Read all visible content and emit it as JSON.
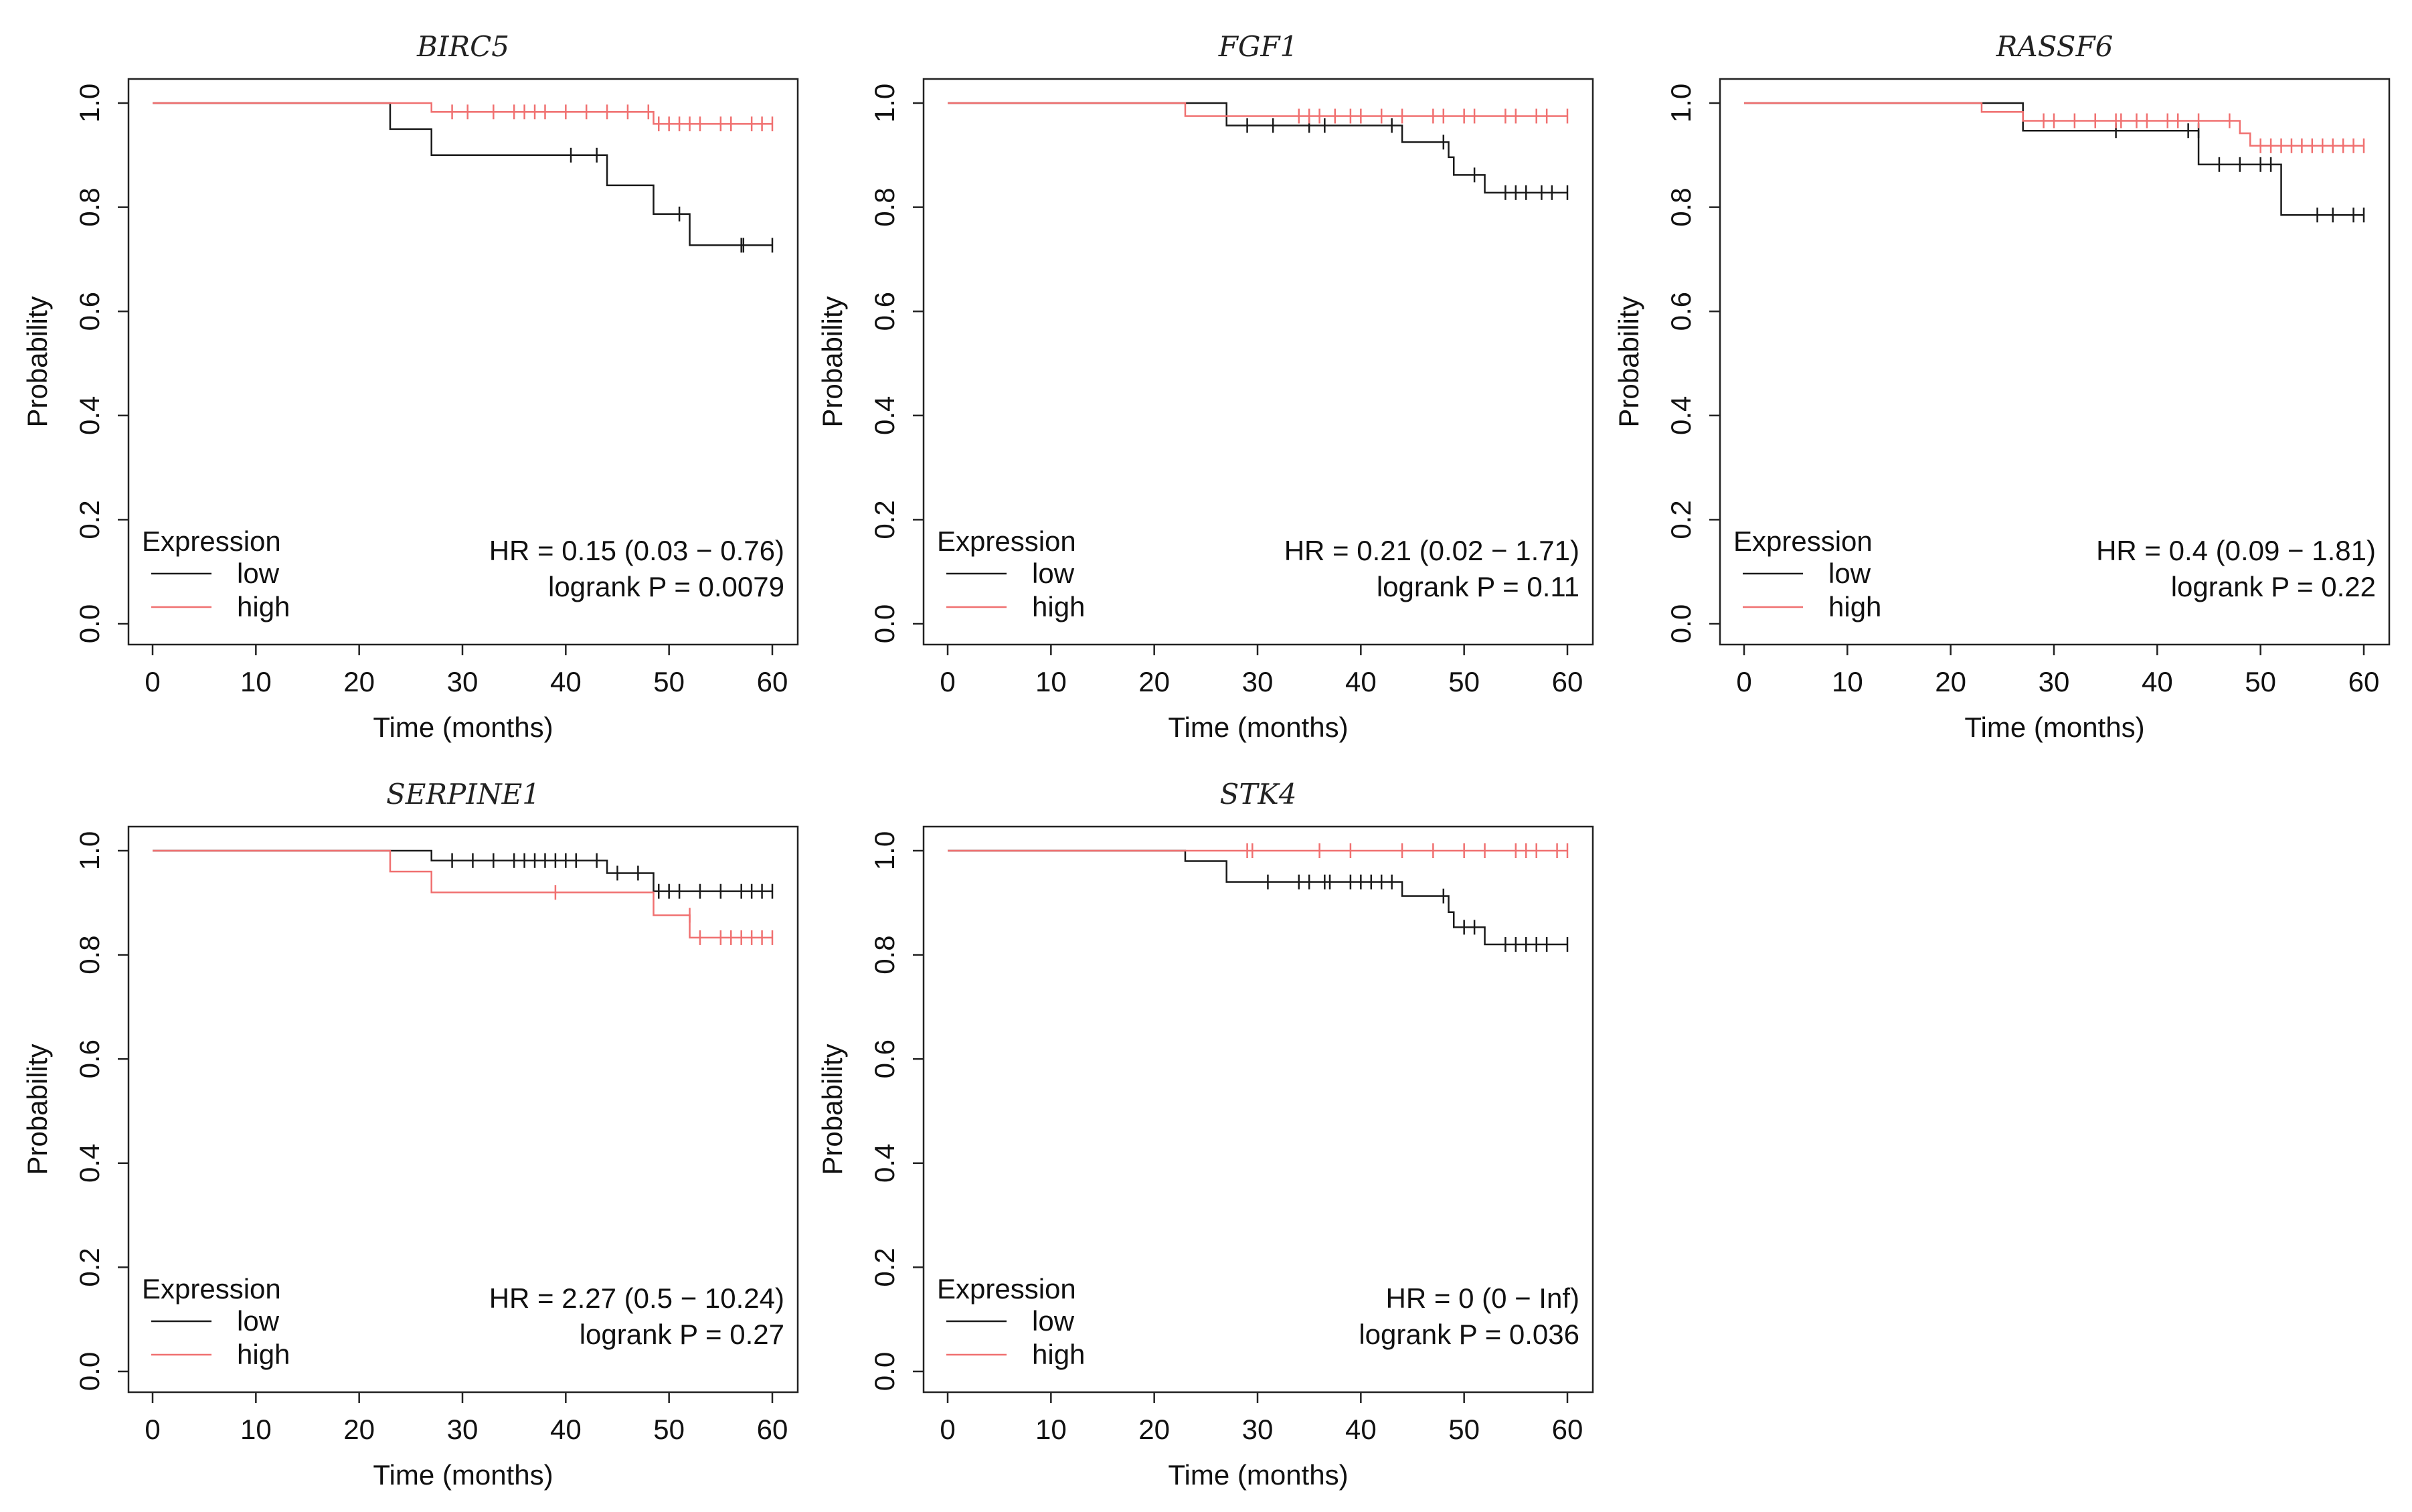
{
  "colors": {
    "low": "#1a1a1a",
    "high": "#f07070",
    "axis": "#222222"
  },
  "chart_data": [
    {
      "type": "line",
      "subtype": "kaplan-meier",
      "title": "BIRC5",
      "xlabel": "Time (months)",
      "ylabel": "Probability",
      "xlim": [
        0,
        60
      ],
      "ylim": [
        0,
        1
      ],
      "xticks": [
        "0",
        "10",
        "20",
        "30",
        "40",
        "50",
        "60"
      ],
      "yticks": [
        "0.0",
        "0.2",
        "0.4",
        "0.6",
        "0.8",
        "1.0"
      ],
      "legend": {
        "title": "Expression",
        "entries": [
          "low",
          "high"
        ],
        "position": "bottom-left"
      },
      "stats": {
        "hr": "HR = 0.15 (0.03 − 0.76)",
        "logrank": "logrank P = 0.0079"
      },
      "series": [
        {
          "name": "low",
          "steps": [
            [
              0,
              1.0
            ],
            [
              23,
              0.95
            ],
            [
              27,
              0.9
            ],
            [
              44,
              0.842
            ],
            [
              48.5,
              0.787
            ],
            [
              52,
              0.727
            ],
            [
              60,
              0.727
            ]
          ],
          "censors": [
            [
              40.5,
              0.9
            ],
            [
              43,
              0.9
            ],
            [
              51,
              0.787
            ],
            [
              57,
              0.727
            ],
            [
              57.2,
              0.727
            ],
            [
              60,
              0.727
            ]
          ]
        },
        {
          "name": "high",
          "steps": [
            [
              0,
              1.0
            ],
            [
              27,
              0.983
            ],
            [
              48.5,
              0.96
            ],
            [
              60,
              0.96
            ]
          ],
          "censors": [
            [
              29,
              0.983
            ],
            [
              30.5,
              0.983
            ],
            [
              33,
              0.983
            ],
            [
              35,
              0.983
            ],
            [
              36,
              0.983
            ],
            [
              37,
              0.983
            ],
            [
              38,
              0.983
            ],
            [
              40,
              0.983
            ],
            [
              42,
              0.983
            ],
            [
              44,
              0.983
            ],
            [
              46,
              0.983
            ],
            [
              48,
              0.983
            ],
            [
              49,
              0.96
            ],
            [
              50,
              0.96
            ],
            [
              51,
              0.96
            ],
            [
              52,
              0.96
            ],
            [
              53,
              0.96
            ],
            [
              55,
              0.96
            ],
            [
              56,
              0.96
            ],
            [
              58,
              0.96
            ],
            [
              59,
              0.96
            ],
            [
              60,
              0.96
            ]
          ]
        }
      ]
    },
    {
      "type": "line",
      "subtype": "kaplan-meier",
      "title": "FGF1",
      "xlabel": "Time (months)",
      "ylabel": "Probability",
      "xlim": [
        0,
        60
      ],
      "ylim": [
        0,
        1
      ],
      "xticks": [
        "0",
        "10",
        "20",
        "30",
        "40",
        "50",
        "60"
      ],
      "yticks": [
        "0.0",
        "0.2",
        "0.4",
        "0.6",
        "0.8",
        "1.0"
      ],
      "legend": {
        "title": "Expression",
        "entries": [
          "low",
          "high"
        ],
        "position": "bottom-left"
      },
      "stats": {
        "hr": "HR = 0.21 (0.02 − 1.71)",
        "logrank": "logrank P = 0.11"
      },
      "series": [
        {
          "name": "low",
          "steps": [
            [
              0,
              1.0
            ],
            [
              27,
              0.957
            ],
            [
              44,
              0.925
            ],
            [
              48.5,
              0.896
            ],
            [
              49,
              0.862
            ],
            [
              52,
              0.828
            ],
            [
              60,
              0.828
            ]
          ],
          "censors": [
            [
              29,
              0.957
            ],
            [
              31.5,
              0.957
            ],
            [
              35,
              0.957
            ],
            [
              36.5,
              0.957
            ],
            [
              43,
              0.957
            ],
            [
              48,
              0.925
            ],
            [
              51,
              0.862
            ],
            [
              54,
              0.828
            ],
            [
              55,
              0.828
            ],
            [
              56,
              0.828
            ],
            [
              57.5,
              0.828
            ],
            [
              58.5,
              0.828
            ],
            [
              60,
              0.828
            ]
          ]
        },
        {
          "name": "high",
          "steps": [
            [
              0,
              1.0
            ],
            [
              23,
              0.975
            ],
            [
              60,
              0.975
            ]
          ],
          "censors": [
            [
              34,
              0.975
            ],
            [
              35,
              0.975
            ],
            [
              36,
              0.975
            ],
            [
              37.5,
              0.975
            ],
            [
              39,
              0.975
            ],
            [
              40,
              0.975
            ],
            [
              42,
              0.975
            ],
            [
              44,
              0.975
            ],
            [
              47,
              0.975
            ],
            [
              48,
              0.975
            ],
            [
              50,
              0.975
            ],
            [
              51,
              0.975
            ],
            [
              54,
              0.975
            ],
            [
              55,
              0.975
            ],
            [
              57,
              0.975
            ],
            [
              58,
              0.975
            ],
            [
              60,
              0.975
            ]
          ]
        }
      ]
    },
    {
      "type": "line",
      "subtype": "kaplan-meier",
      "title": "RASSF6",
      "xlabel": "Time (months)",
      "ylabel": "Probability",
      "xlim": [
        0,
        60
      ],
      "ylim": [
        0,
        1
      ],
      "xticks": [
        "0",
        "10",
        "20",
        "30",
        "40",
        "50",
        "60"
      ],
      "yticks": [
        "0.0",
        "0.2",
        "0.4",
        "0.6",
        "0.8",
        "1.0"
      ],
      "legend": {
        "title": "Expression",
        "entries": [
          "low",
          "high"
        ],
        "position": "bottom-left"
      },
      "stats": {
        "hr": "HR = 0.4 (0.09 − 1.81)",
        "logrank": "logrank P = 0.22"
      },
      "series": [
        {
          "name": "low",
          "steps": [
            [
              0,
              1.0
            ],
            [
              27,
              0.947
            ],
            [
              44,
              0.882
            ],
            [
              52,
              0.785
            ],
            [
              60,
              0.785
            ]
          ],
          "censors": [
            [
              36,
              0.947
            ],
            [
              43,
              0.947
            ],
            [
              44,
              0.947
            ],
            [
              46,
              0.882
            ],
            [
              48,
              0.882
            ],
            [
              50,
              0.882
            ],
            [
              51,
              0.882
            ],
            [
              55.5,
              0.785
            ],
            [
              57,
              0.785
            ],
            [
              59,
              0.785
            ],
            [
              60,
              0.785
            ]
          ]
        },
        {
          "name": "high",
          "steps": [
            [
              0,
              1.0
            ],
            [
              23,
              0.983
            ],
            [
              27,
              0.966
            ],
            [
              48,
              0.942
            ],
            [
              49,
              0.918
            ],
            [
              60,
              0.918
            ]
          ],
          "censors": [
            [
              29,
              0.966
            ],
            [
              30,
              0.966
            ],
            [
              32,
              0.966
            ],
            [
              34,
              0.966
            ],
            [
              36,
              0.966
            ],
            [
              36.5,
              0.966
            ],
            [
              38,
              0.966
            ],
            [
              39,
              0.966
            ],
            [
              41,
              0.966
            ],
            [
              42,
              0.966
            ],
            [
              44,
              0.966
            ],
            [
              47,
              0.966
            ],
            [
              50,
              0.918
            ],
            [
              51,
              0.918
            ],
            [
              52,
              0.918
            ],
            [
              53,
              0.918
            ],
            [
              54,
              0.918
            ],
            [
              55,
              0.918
            ],
            [
              56,
              0.918
            ],
            [
              57,
              0.918
            ],
            [
              58,
              0.918
            ],
            [
              59,
              0.918
            ],
            [
              60,
              0.918
            ]
          ]
        }
      ]
    },
    {
      "type": "line",
      "subtype": "kaplan-meier",
      "title": "SERPINE1",
      "xlabel": "Time (months)",
      "ylabel": "Probability",
      "xlim": [
        0,
        60
      ],
      "ylim": [
        0,
        1
      ],
      "xticks": [
        "0",
        "10",
        "20",
        "30",
        "40",
        "50",
        "60"
      ],
      "yticks": [
        "0.0",
        "0.2",
        "0.4",
        "0.6",
        "0.8",
        "1.0"
      ],
      "legend": {
        "title": "Expression",
        "entries": [
          "low",
          "high"
        ],
        "position": "bottom-left"
      },
      "stats": {
        "hr": "HR = 2.27 (0.5 − 10.24)",
        "logrank": "logrank P = 0.27"
      },
      "series": [
        {
          "name": "low",
          "steps": [
            [
              0,
              1.0
            ],
            [
              27,
              0.981
            ],
            [
              44,
              0.957
            ],
            [
              48.5,
              0.922
            ],
            [
              60,
              0.922
            ]
          ],
          "censors": [
            [
              29,
              0.981
            ],
            [
              31,
              0.981
            ],
            [
              33,
              0.981
            ],
            [
              35,
              0.981
            ],
            [
              36,
              0.981
            ],
            [
              37,
              0.981
            ],
            [
              38,
              0.981
            ],
            [
              39,
              0.981
            ],
            [
              40,
              0.981
            ],
            [
              41,
              0.981
            ],
            [
              43,
              0.981
            ],
            [
              45,
              0.957
            ],
            [
              47,
              0.957
            ],
            [
              49,
              0.922
            ],
            [
              50,
              0.922
            ],
            [
              51,
              0.922
            ],
            [
              53,
              0.922
            ],
            [
              55,
              0.922
            ],
            [
              57,
              0.922
            ],
            [
              58,
              0.922
            ],
            [
              59,
              0.922
            ],
            [
              60,
              0.922
            ]
          ]
        },
        {
          "name": "high",
          "steps": [
            [
              0,
              1.0
            ],
            [
              23,
              0.96
            ],
            [
              27,
              0.92
            ],
            [
              48.5,
              0.876
            ],
            [
              52,
              0.833
            ],
            [
              60,
              0.833
            ]
          ],
          "censors": [
            [
              39,
              0.92
            ],
            [
              52,
              0.876
            ],
            [
              53,
              0.833
            ],
            [
              55,
              0.833
            ],
            [
              56,
              0.833
            ],
            [
              57,
              0.833
            ],
            [
              58,
              0.833
            ],
            [
              59,
              0.833
            ],
            [
              60,
              0.833
            ]
          ]
        }
      ]
    },
    {
      "type": "line",
      "subtype": "kaplan-meier",
      "title": "STK4",
      "xlabel": "Time (months)",
      "ylabel": "Probability",
      "xlim": [
        0,
        60
      ],
      "ylim": [
        0,
        1
      ],
      "xticks": [
        "0",
        "10",
        "20",
        "30",
        "40",
        "50",
        "60"
      ],
      "yticks": [
        "0.0",
        "0.2",
        "0.4",
        "0.6",
        "0.8",
        "1.0"
      ],
      "legend": {
        "title": "Expression",
        "entries": [
          "low",
          "high"
        ],
        "position": "bottom-left"
      },
      "stats": {
        "hr": "HR = 0 (0 − Inf)",
        "logrank": "logrank P = 0.036"
      },
      "series": [
        {
          "name": "low",
          "steps": [
            [
              0,
              1.0
            ],
            [
              23,
              0.98
            ],
            [
              27,
              0.94
            ],
            [
              44,
              0.913
            ],
            [
              48.5,
              0.882
            ],
            [
              49,
              0.853
            ],
            [
              52,
              0.82
            ],
            [
              60,
              0.82
            ]
          ],
          "censors": [
            [
              31,
              0.94
            ],
            [
              34,
              0.94
            ],
            [
              35,
              0.94
            ],
            [
              36.5,
              0.94
            ],
            [
              37,
              0.94
            ],
            [
              39,
              0.94
            ],
            [
              40,
              0.94
            ],
            [
              41,
              0.94
            ],
            [
              42,
              0.94
            ],
            [
              43,
              0.94
            ],
            [
              48,
              0.913
            ],
            [
              50,
              0.853
            ],
            [
              51,
              0.853
            ],
            [
              54,
              0.82
            ],
            [
              55,
              0.82
            ],
            [
              56,
              0.82
            ],
            [
              57,
              0.82
            ],
            [
              58,
              0.82
            ],
            [
              60,
              0.82
            ]
          ]
        },
        {
          "name": "high",
          "steps": [
            [
              0,
              1.0
            ],
            [
              60,
              1.0
            ]
          ],
          "censors": [
            [
              29,
              1.0
            ],
            [
              29.5,
              1.0
            ],
            [
              36,
              1.0
            ],
            [
              39,
              1.0
            ],
            [
              44,
              1.0
            ],
            [
              47,
              1.0
            ],
            [
              50,
              1.0
            ],
            [
              52,
              1.0
            ],
            [
              55,
              1.0
            ],
            [
              56,
              1.0
            ],
            [
              57,
              1.0
            ],
            [
              59,
              1.0
            ],
            [
              60,
              1.0
            ]
          ]
        }
      ]
    }
  ]
}
